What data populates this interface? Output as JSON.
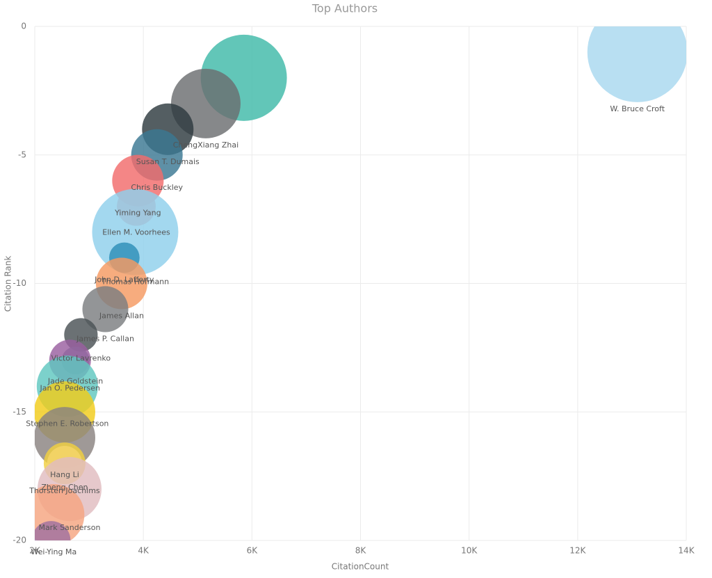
{
  "chart_data": {
    "type": "bubble",
    "title": "Top Authors",
    "x_label": "CitationCount",
    "y_label": "Citation Rank",
    "labels": [
      "W. Bruce Croft",
      null,
      "ChengXiang Zhai",
      "Susan T. Dumais",
      "Chris Buckley",
      "Yiming Yang",
      "Ellen M. Voorhees",
      "Thomas Hofmann",
      "John D. Lafferty",
      "James Allan",
      "James P. Callan",
      "Victor Lavrenko",
      "Jade Goldstein",
      "Jan O. Pedersen",
      "Stephen E. Robertson",
      null,
      "Hang Li",
      "Thorsten Joachims",
      "Zheng Chen",
      "Mark Sanderson",
      "Wei-Ying Ma",
      null
    ],
    "x": [
      13100,
      5850,
      5150,
      4450,
      4250,
      3900,
      3870,
      3850,
      3650,
      3600,
      3300,
      2850,
      2750,
      2650,
      2600,
      2550,
      2550,
      2550,
      2550,
      2640,
      2350,
      2300
    ],
    "values": [
      -1,
      -2,
      -3,
      -4,
      -5,
      -6,
      -7,
      -8,
      -9,
      -10,
      -11,
      -12,
      -13,
      -13,
      -14,
      -15,
      -16,
      -17,
      -17,
      -18,
      -19,
      -20
    ],
    "sizes": [
      518,
      384,
      250,
      137,
      137,
      137,
      78,
      384,
      48,
      137,
      109,
      58,
      40,
      90,
      194,
      194,
      194,
      90,
      63,
      212,
      194,
      78
    ],
    "colors": [
      "#a8d8ef",
      "#3fb9a8",
      "#6b6e70",
      "#2e3b40",
      "#3a7893",
      "#f26b6b",
      "#f08a8a",
      "#8fd0ec",
      "#2e8fb8",
      "#f59a62",
      "#7b7e80",
      "#4a5255",
      "#6a8896",
      "#9a5fa0",
      "#5fc7bf",
      "#f2cc1a",
      "#8a8280",
      "#f0d040",
      "#f5d66a",
      "#e0bcc0",
      "#f5a580",
      "#a070a0"
    ],
    "xlim": [
      2000,
      14000
    ],
    "xticks": [
      {
        "value": 2000,
        "label": "2K"
      },
      {
        "value": 4000,
        "label": "4K"
      },
      {
        "value": 6000,
        "label": "6K"
      },
      {
        "value": 8000,
        "label": "8K"
      },
      {
        "value": 10000,
        "label": "10K"
      },
      {
        "value": 12000,
        "label": "12K"
      },
      {
        "value": 14000,
        "label": "14K"
      }
    ],
    "ylim": [
      -20,
      0
    ],
    "yticks": [
      0,
      -5,
      -10,
      -15,
      -20
    ],
    "grid": true
  }
}
